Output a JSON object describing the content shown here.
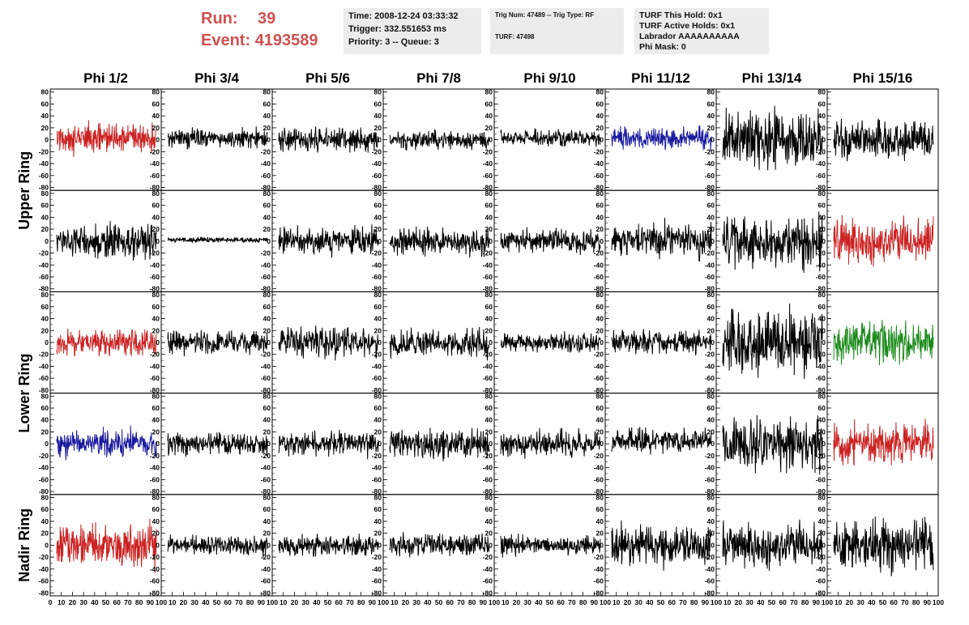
{
  "header": {
    "run_label": "Run:",
    "run_value": "39",
    "event_label": "Event:",
    "event_value": "4193589",
    "time": "Time: 2008-12-24 03:33:32",
    "trigger": "Trigger: 332.551653 ms",
    "priority": "Priority: 3 -- Queue: 3",
    "trig_num": "Trig Num: 47489 -- Trig Type: RF",
    "turf": "TURF: 47498",
    "turf_hold": "TURF This Hold: 0x1",
    "turf_active": "TURF Active Holds: 0x1",
    "labrador": "Labrador AAAAAAAAAA",
    "phi_mask": "Phi Mask: 0"
  },
  "chart_data": {
    "type": "line",
    "columns": [
      "Phi 1/2",
      "Phi 3/4",
      "Phi 5/6",
      "Phi 7/8",
      "Phi 9/10",
      "Phi 11/12",
      "Phi 13/14",
      "Phi 15/16"
    ],
    "rows": [
      "Upper Ring",
      "Lower Ring",
      "Nadir Ring"
    ],
    "ylim": [
      -85,
      85
    ],
    "xlim": [
      0,
      100
    ],
    "yticks": [
      80,
      60,
      40,
      20,
      0,
      -20,
      -40,
      -60,
      -80
    ],
    "xtick_labels_first": [
      "0",
      "10",
      "20",
      "30",
      "40",
      "50",
      "60",
      "70",
      "80",
      "90",
      "100"
    ],
    "xtick_labels": [
      "10",
      "20",
      "30",
      "40",
      "50",
      "60",
      "70",
      "80",
      "90",
      "100"
    ],
    "colors": {
      "black": "#000000",
      "red": "#cc2222",
      "blue": "#1a1aa0",
      "green": "#1a8a1a"
    },
    "panels": [
      [
        {
          "amp": 28,
          "color": "red",
          "mean": 3
        },
        {
          "amp": 18,
          "color": "black",
          "mean": 2
        },
        {
          "amp": 22,
          "color": "black",
          "mean": 0
        },
        {
          "amp": 18,
          "color": "black",
          "mean": 0
        },
        {
          "amp": 15,
          "color": "black",
          "mean": 3
        },
        {
          "amp": 20,
          "color": "blue",
          "mean": 3
        },
        {
          "amp": 52,
          "color": "black",
          "mean": 0
        },
        {
          "amp": 35,
          "color": "black",
          "mean": 0
        }
      ],
      [
        {
          "amp": 30,
          "color": "black",
          "mean": 0
        },
        {
          "amp": 5,
          "color": "black",
          "mean": 2
        },
        {
          "amp": 25,
          "color": "black",
          "mean": 0
        },
        {
          "amp": 25,
          "color": "black",
          "mean": -2
        },
        {
          "amp": 22,
          "color": "black",
          "mean": 0
        },
        {
          "amp": 32,
          "color": "black",
          "mean": 2
        },
        {
          "amp": 48,
          "color": "black",
          "mean": 0
        },
        {
          "amp": 42,
          "color": "red",
          "mean": 0
        }
      ],
      [
        {
          "amp": 26,
          "color": "red",
          "mean": 0
        },
        {
          "amp": 22,
          "color": "black",
          "mean": 0
        },
        {
          "amp": 28,
          "color": "black",
          "mean": 0
        },
        {
          "amp": 25,
          "color": "black",
          "mean": -2
        },
        {
          "amp": 18,
          "color": "black",
          "mean": 0
        },
        {
          "amp": 22,
          "color": "black",
          "mean": 0
        },
        {
          "amp": 58,
          "color": "black",
          "mean": 0
        },
        {
          "amp": 38,
          "color": "green",
          "mean": 0
        }
      ],
      [
        {
          "amp": 26,
          "color": "blue",
          "mean": 0
        },
        {
          "amp": 20,
          "color": "black",
          "mean": 0
        },
        {
          "amp": 24,
          "color": "black",
          "mean": 0
        },
        {
          "amp": 28,
          "color": "black",
          "mean": 0
        },
        {
          "amp": 25,
          "color": "black",
          "mean": 0
        },
        {
          "amp": 22,
          "color": "black",
          "mean": 5
        },
        {
          "amp": 48,
          "color": "black",
          "mean": 0
        },
        {
          "amp": 40,
          "color": "red",
          "mean": 0
        }
      ],
      [
        {
          "amp": 40,
          "color": "red",
          "mean": 0
        },
        {
          "amp": 18,
          "color": "black",
          "mean": 0
        },
        {
          "amp": 20,
          "color": "black",
          "mean": 0
        },
        {
          "amp": 22,
          "color": "black",
          "mean": 0
        },
        {
          "amp": 18,
          "color": "black",
          "mean": 0
        },
        {
          "amp": 38,
          "color": "black",
          "mean": 0
        },
        {
          "amp": 42,
          "color": "black",
          "mean": 0
        },
        {
          "amp": 48,
          "color": "black",
          "mean": 0
        }
      ]
    ]
  }
}
